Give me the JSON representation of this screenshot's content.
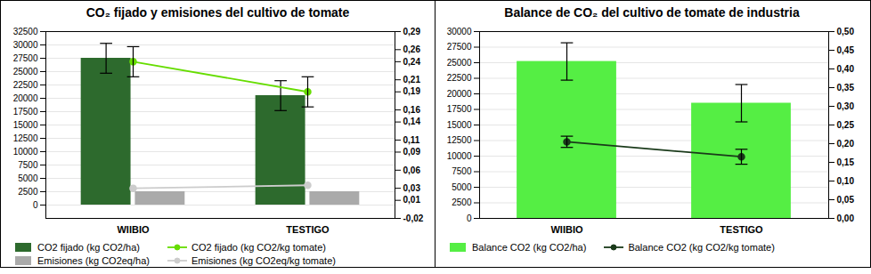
{
  "chart_data": [
    {
      "type": "bar",
      "title": "CO₂ fijado y emisiones del cultivo de tomate",
      "categories": [
        "WIIBIO",
        "TESTIGO"
      ],
      "series": [
        {
          "name": "CO2 fijado (kg CO2/ha)",
          "type": "bar",
          "color": "#2d6a2d",
          "values": [
            27500,
            20500
          ],
          "errors": [
            2800,
            2800
          ]
        },
        {
          "name": "Emisiones (kg CO2eq/ha)",
          "type": "bar",
          "color": "#aaaaaa",
          "values": [
            2500,
            2500
          ]
        },
        {
          "name": "CO2 fijado (kg CO2/kg tomate)",
          "type": "line",
          "axis": "y2",
          "color": "#66dd00",
          "marker": "circle",
          "values": [
            0.24,
            0.19
          ],
          "errors": [
            0.025,
            0.025
          ]
        },
        {
          "name": "Emisiones (kg CO2eq/kg tomate)",
          "type": "line",
          "axis": "y2",
          "color": "#cccccc",
          "marker": "circle",
          "values": [
            0.03,
            0.035
          ]
        }
      ],
      "ylim": [
        -2500,
        32500
      ],
      "yticks": [
        0,
        2500,
        5000,
        7500,
        10000,
        12500,
        15000,
        17500,
        20000,
        22500,
        25000,
        27500,
        30000,
        32500
      ],
      "y2lim": [
        -0.02,
        0.29
      ],
      "y2ticks": [
        {
          "value": -0.02,
          "label": "-0,02"
        },
        {
          "value": 0.01,
          "label": "0,01"
        },
        {
          "value": 0.03,
          "label": "0,03"
        },
        {
          "value": 0.06,
          "label": "0,06"
        },
        {
          "value": 0.09,
          "label": "0,09"
        },
        {
          "value": 0.11,
          "label": "0,11"
        },
        {
          "value": 0.14,
          "label": "0,14"
        },
        {
          "value": 0.16,
          "label": "0,16"
        },
        {
          "value": 0.19,
          "label": "0,19"
        },
        {
          "value": 0.21,
          "label": "0,21"
        },
        {
          "value": 0.24,
          "label": "0,24"
        },
        {
          "value": 0.26,
          "label": "0,26"
        },
        {
          "value": 0.29,
          "label": "0,29"
        }
      ],
      "grid": true,
      "legend": "bottom"
    },
    {
      "type": "bar",
      "title": "Balance de CO₂ del cultivo de tomate de industria",
      "categories": [
        "WIIBIO",
        "TESTIGO"
      ],
      "series": [
        {
          "name": "Balance CO2 (kg CO2/ha)",
          "type": "bar",
          "color": "#55ee44",
          "values": [
            25200,
            18500
          ],
          "errors_down": [
            3000,
            3000
          ],
          "errors_up": [
            3000,
            3000
          ]
        },
        {
          "name": "Balance CO2 (kg CO2/kg tomate)",
          "type": "line",
          "axis": "y2",
          "color": "#1a3a1a",
          "marker": "circle",
          "values": [
            0.205,
            0.165
          ],
          "errors": [
            0.015,
            0.02
          ]
        }
      ],
      "ylim": [
        0,
        30000
      ],
      "yticks": [
        0,
        2500,
        5000,
        7500,
        10000,
        12500,
        15000,
        17500,
        20000,
        22500,
        25000,
        27500,
        30000
      ],
      "y2lim": [
        0.0,
        0.5
      ],
      "y2ticks": [
        {
          "value": 0.0,
          "label": "0,00"
        },
        {
          "value": 0.05,
          "label": "0,05"
        },
        {
          "value": 0.1,
          "label": "0,10"
        },
        {
          "value": 0.15,
          "label": "0,15"
        },
        {
          "value": 0.2,
          "label": "0,20"
        },
        {
          "value": 0.25,
          "label": "0,25"
        },
        {
          "value": 0.3,
          "label": "0,30"
        },
        {
          "value": 0.35,
          "label": "0,35"
        },
        {
          "value": 0.4,
          "label": "0,40"
        },
        {
          "value": 0.45,
          "label": "0,45"
        },
        {
          "value": 0.5,
          "label": "0,50"
        }
      ],
      "grid": true,
      "legend": "bottom"
    }
  ]
}
